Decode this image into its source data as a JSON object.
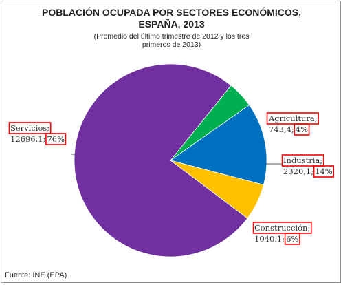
{
  "chart_data": {
    "type": "pie",
    "title": [
      "POBLACIÓN OCUPADA POR SECTORES ECONÓMICOS,",
      "ESPAÑA, 2013"
    ],
    "subtitle": [
      "(Promedio del último trimestre de 2012 y los tres",
      "primeros de 2013)"
    ],
    "source": "Fuente: INE (EPA)",
    "slices": [
      {
        "name": "Servicios",
        "value": 12696.1,
        "value_label": "12696,1;",
        "percent_label": "76%",
        "color": "#7030a0"
      },
      {
        "name": "Agricultura",
        "value": 743.4,
        "value_label": "743,4;",
        "percent_label": "4%",
        "color": "#00b050"
      },
      {
        "name": "Industria",
        "value": 2320.1,
        "value_label": "2320,1;",
        "percent_label": "14%",
        "color": "#0070c0"
      },
      {
        "name": "Construcción",
        "value": 1040.1,
        "value_label": "1040,1;",
        "percent_label": "6%",
        "color": "#ffc000"
      }
    ],
    "label_text": {
      "Servicios": "Servicios;",
      "Agricultura": "Agricultura;",
      "Industria": "Industria;",
      "Construcción": "Construcción;"
    },
    "highlight_color": "#ff0000"
  }
}
